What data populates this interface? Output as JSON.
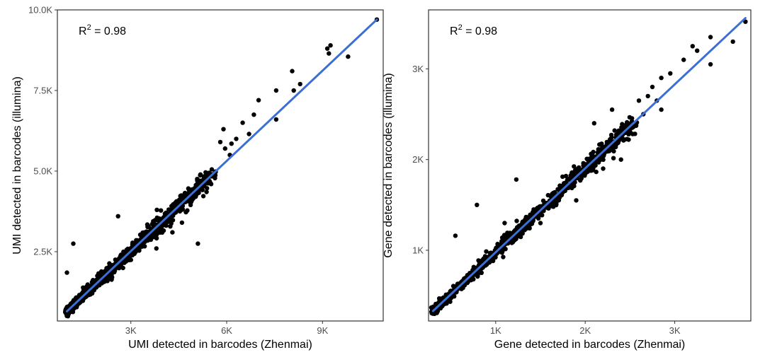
{
  "colors": {
    "points": "#000000",
    "fit_line": "#3b6fd4",
    "frame": "#333333"
  },
  "chart_data": [
    {
      "type": "scatter",
      "xlabel": "UMI detected in barcodes (Zhenmai)",
      "ylabel": "UMI detected in barcodes (illumina)",
      "annotation": {
        "prefix": "R",
        "sup": "2",
        "text": " = 0.98"
      },
      "xlim": [
        700,
        10900
      ],
      "ylim": [
        350,
        10000
      ],
      "xticks": [
        {
          "v": 3000,
          "label": "3K"
        },
        {
          "v": 6000,
          "label": "6K"
        },
        {
          "v": 9000,
          "label": "9K"
        }
      ],
      "yticks": [
        {
          "v": 2500,
          "label": "2.5K"
        },
        {
          "v": 5000,
          "label": "5.0K"
        },
        {
          "v": 7500,
          "label": "7.5K"
        },
        {
          "v": 10000,
          "label": "10.0K"
        }
      ],
      "fit_line": {
        "x": [
          1000,
          10700
        ],
        "y": [
          650,
          9700
        ]
      },
      "cloud": {
        "x_start": 1000,
        "x_end": 5600,
        "slope": 0.933,
        "intercept": -283,
        "spread": 210,
        "count": 1100
      },
      "points": [
        [
          10700,
          9700
        ],
        [
          9250,
          8900
        ],
        [
          9150,
          8800
        ],
        [
          9200,
          8650
        ],
        [
          9800,
          8550
        ],
        [
          8050,
          8100
        ],
        [
          8300,
          7700
        ],
        [
          8100,
          7500
        ],
        [
          7550,
          7500
        ],
        [
          7000,
          7200
        ],
        [
          7550,
          6600
        ],
        [
          6850,
          6750
        ],
        [
          6700,
          6150
        ],
        [
          6500,
          6500
        ],
        [
          6300,
          6000
        ],
        [
          6150,
          5850
        ],
        [
          5950,
          5700
        ],
        [
          5800,
          5900
        ],
        [
          6100,
          5500
        ],
        [
          5900,
          6300
        ],
        [
          2600,
          3600
        ],
        [
          1200,
          2750
        ],
        [
          1000,
          1850
        ],
        [
          1950,
          1750
        ],
        [
          2200,
          1900
        ],
        [
          5100,
          2750
        ],
        [
          4600,
          3400
        ],
        [
          3800,
          2600
        ],
        [
          4300,
          3100
        ],
        [
          1600,
          1250
        ]
      ]
    },
    {
      "type": "scatter",
      "xlabel": "Gene detected in barcodes (Zhenmai)",
      "ylabel": "Gene detected in barcodes (illumina)",
      "annotation": {
        "prefix": "R",
        "sup": "2",
        "text": " = 0.98"
      },
      "xlim": [
        250,
        3850
      ],
      "ylim": [
        220,
        3650
      ],
      "xticks": [
        {
          "v": 1000,
          "label": "1K"
        },
        {
          "v": 2000,
          "label": "2K"
        },
        {
          "v": 3000,
          "label": "3K"
        }
      ],
      "yticks": [
        {
          "v": 1000,
          "label": "1K"
        },
        {
          "v": 2000,
          "label": "2K"
        },
        {
          "v": 3000,
          "label": "3K"
        }
      ],
      "fit_line": {
        "x": [
          300,
          3790
        ],
        "y": [
          330,
          3560
        ]
      },
      "cloud": {
        "x_start": 300,
        "x_end": 2550,
        "slope": 0.925,
        "intercept": 52,
        "spread": 70,
        "count": 1100
      },
      "points": [
        [
          3790,
          3520
        ],
        [
          3400,
          3350
        ],
        [
          3200,
          3250
        ],
        [
          3250,
          3200
        ],
        [
          3400,
          3050
        ],
        [
          3100,
          3100
        ],
        [
          2950,
          2950
        ],
        [
          2850,
          2900
        ],
        [
          2750,
          2800
        ],
        [
          2700,
          2700
        ],
        [
          2800,
          2650
        ],
        [
          2600,
          2650
        ],
        [
          2300,
          2550
        ],
        [
          2850,
          2550
        ],
        [
          2650,
          2500
        ],
        [
          1230,
          1780
        ],
        [
          790,
          1500
        ],
        [
          550,
          1160
        ],
        [
          3650,
          3300
        ],
        [
          2100,
          2400
        ],
        [
          1500,
          1300
        ],
        [
          1900,
          1550
        ],
        [
          2200,
          1900
        ],
        [
          1100,
          1300
        ],
        [
          2400,
          2000
        ]
      ]
    }
  ]
}
